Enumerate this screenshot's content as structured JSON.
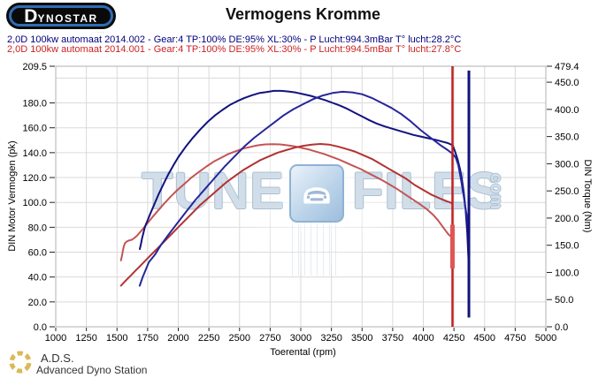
{
  "header": {
    "logo_d": "D",
    "logo_rest": "YNOSTAR",
    "logo_sub": "...",
    "title": "Vermogens Kromme"
  },
  "legend": {
    "run1": {
      "text": "2,0D 100kw automaat 2014.002 - Gear:4 TP:100% DE:95% XL:30%   - P Lucht:994.3mBar T° lucht:28.2°C",
      "color": "#00007d"
    },
    "run2": {
      "text": "2,0D 100kw automaat 2014.001 - Gear:4 TP:100% DE:95% XL:30%   - P Lucht:994.5mBar T° lucht:27.8°C",
      "color": "#cc2222"
    }
  },
  "watermark": {
    "t1": "TUNE",
    "t2": "FILES",
    "t3": "com"
  },
  "footer": {
    "abbr": "A.D.S.",
    "name": "Advanced Dyno Station"
  },
  "chart_data": {
    "type": "line",
    "title": "Vermogens Kromme",
    "grid": true,
    "grid_color": "#dadada",
    "border_color": "#b0b0b0",
    "tick_color": "#222222",
    "x_axis": {
      "label": "Toerental (rpm)",
      "min": 1000,
      "max": 5000,
      "ticks": [
        1000,
        1250,
        1500,
        1750,
        2000,
        2250,
        2500,
        2750,
        3000,
        3250,
        3500,
        3750,
        4000,
        4250,
        4500,
        4750,
        5000
      ],
      "tick_labels": [
        "1000",
        "1250",
        "1500",
        "1750",
        "2000",
        "2250",
        "2500",
        "2750",
        "3000",
        "3250",
        "3500",
        "3750",
        "4000",
        "4250",
        "4500",
        "4750",
        "5000"
      ],
      "grid": [
        1250,
        1500,
        1750,
        2000,
        2250,
        2500,
        2750,
        3000,
        3250,
        3500,
        3750,
        4000,
        4250,
        4500,
        4750
      ]
    },
    "y_left": {
      "label": "DIN Motor Vermogen (pk)",
      "min": 0,
      "max": 209.5,
      "ticks": [
        209.5,
        180,
        160,
        140,
        120,
        100,
        80,
        60,
        40,
        20,
        0
      ],
      "tick_labels": [
        "209.5",
        "180.0",
        "160.0",
        "140.0",
        "120.0",
        "100.0",
        "80.0",
        "60.0",
        "40.0",
        "20.0",
        "0.0"
      ],
      "grid": [
        20,
        40,
        60,
        80,
        100,
        120,
        140,
        160,
        180,
        200
      ]
    },
    "y_right": {
      "label": "DIN Torque (Nm)",
      "min": 0,
      "max": 479.4,
      "ticks": [
        479.4,
        450,
        400,
        350,
        300,
        250,
        200,
        150,
        100,
        50,
        0
      ],
      "tick_labels": [
        "479.4",
        "450.0",
        "400.0",
        "350.0",
        "300.0",
        "250.0",
        "200.0",
        "150.0",
        "100.0",
        "50.0",
        "0.0"
      ]
    },
    "series": [
      {
        "name": "torque-2014-001",
        "axis": "right",
        "color": "#c45454",
        "width": 2,
        "points": [
          [
            1532,
            122
          ],
          [
            1540,
            130
          ],
          [
            1548,
            140
          ],
          [
            1556,
            148
          ],
          [
            1565,
            154
          ],
          [
            1580,
            157
          ],
          [
            1600,
            159
          ],
          [
            1620,
            160
          ],
          [
            1640,
            163
          ],
          [
            1665,
            168
          ],
          [
            1700,
            177
          ],
          [
            1740,
            188
          ],
          [
            1790,
            202
          ],
          [
            1840,
            215
          ],
          [
            1890,
            228
          ],
          [
            1940,
            240
          ],
          [
            1990,
            251
          ],
          [
            2050,
            263
          ],
          [
            2110,
            275
          ],
          [
            2170,
            285
          ],
          [
            2230,
            295
          ],
          [
            2290,
            304
          ],
          [
            2350,
            311
          ],
          [
            2410,
            318
          ],
          [
            2470,
            323
          ],
          [
            2530,
            328
          ],
          [
            2590,
            331
          ],
          [
            2650,
            334
          ],
          [
            2710,
            335.5
          ],
          [
            2770,
            336
          ],
          [
            2830,
            335.5
          ],
          [
            2890,
            334
          ],
          [
            2950,
            332
          ],
          [
            3010,
            329
          ],
          [
            3070,
            326
          ],
          [
            3130,
            322
          ],
          [
            3190,
            318
          ],
          [
            3250,
            313
          ],
          [
            3310,
            308
          ],
          [
            3370,
            302
          ],
          [
            3430,
            296
          ],
          [
            3490,
            290
          ],
          [
            3550,
            283
          ],
          [
            3610,
            276
          ],
          [
            3670,
            269
          ],
          [
            3730,
            261
          ],
          [
            3790,
            253
          ],
          [
            3850,
            244
          ],
          [
            3910,
            235
          ],
          [
            3970,
            226
          ],
          [
            4030,
            216
          ],
          [
            4080,
            206
          ],
          [
            4120,
            196
          ],
          [
            4155,
            185
          ],
          [
            4185,
            176
          ],
          [
            4205,
            170
          ],
          [
            4220,
            167
          ],
          [
            4230,
            169
          ],
          [
            4238,
            168
          ]
        ]
      },
      {
        "name": "vermogen-2014-001",
        "axis": "left",
        "color": "#b23232",
        "width": 2,
        "points": [
          [
            1532,
            33
          ],
          [
            1560,
            36
          ],
          [
            1590,
            39
          ],
          [
            1620,
            42
          ],
          [
            1650,
            45
          ],
          [
            1680,
            48
          ],
          [
            1720,
            52
          ],
          [
            1770,
            57
          ],
          [
            1830,
            63
          ],
          [
            1900,
            70
          ],
          [
            1970,
            77
          ],
          [
            2040,
            84
          ],
          [
            2110,
            91
          ],
          [
            2180,
            98
          ],
          [
            2250,
            104
          ],
          [
            2320,
            110
          ],
          [
            2390,
            116
          ],
          [
            2460,
            121
          ],
          [
            2530,
            126
          ],
          [
            2600,
            130
          ],
          [
            2670,
            134
          ],
          [
            2740,
            137
          ],
          [
            2810,
            140
          ],
          [
            2880,
            142
          ],
          [
            2950,
            144
          ],
          [
            3020,
            145.5
          ],
          [
            3090,
            146.5
          ],
          [
            3160,
            147
          ],
          [
            3230,
            146.5
          ],
          [
            3300,
            145
          ],
          [
            3370,
            143
          ],
          [
            3440,
            141
          ],
          [
            3510,
            138
          ],
          [
            3580,
            135
          ],
          [
            3650,
            131
          ],
          [
            3720,
            127
          ],
          [
            3790,
            123
          ],
          [
            3860,
            119
          ],
          [
            3930,
            114
          ],
          [
            4000,
            110
          ],
          [
            4070,
            106
          ],
          [
            4140,
            103
          ],
          [
            4190,
            101
          ],
          [
            4220,
            100
          ],
          [
            4238,
            99
          ]
        ]
      },
      {
        "name": "torque-2014-002",
        "axis": "right",
        "color": "#12127e",
        "width": 2,
        "points": [
          [
            1686,
            143
          ],
          [
            1695,
            152
          ],
          [
            1705,
            163
          ],
          [
            1715,
            172
          ],
          [
            1725,
            181
          ],
          [
            1735,
            188
          ],
          [
            1750,
            196
          ],
          [
            1770,
            207
          ],
          [
            1800,
            223
          ],
          [
            1840,
            244
          ],
          [
            1880,
            263
          ],
          [
            1920,
            281
          ],
          [
            1960,
            297
          ],
          [
            2000,
            312
          ],
          [
            2060,
            331
          ],
          [
            2120,
            348
          ],
          [
            2180,
            363
          ],
          [
            2240,
            377
          ],
          [
            2300,
            389
          ],
          [
            2360,
            399
          ],
          [
            2420,
            408
          ],
          [
            2480,
            415
          ],
          [
            2540,
            421
          ],
          [
            2600,
            426
          ],
          [
            2660,
            430
          ],
          [
            2720,
            432
          ],
          [
            2780,
            434
          ],
          [
            2840,
            434
          ],
          [
            2900,
            433
          ],
          [
            2960,
            431
          ],
          [
            3020,
            428
          ],
          [
            3080,
            425
          ],
          [
            3140,
            421
          ],
          [
            3200,
            417
          ],
          [
            3260,
            412
          ],
          [
            3320,
            407
          ],
          [
            3380,
            401
          ],
          [
            3440,
            394
          ],
          [
            3500,
            387
          ],
          [
            3560,
            380
          ],
          [
            3620,
            374
          ],
          [
            3680,
            369
          ],
          [
            3740,
            365
          ],
          [
            3800,
            361
          ],
          [
            3860,
            357
          ],
          [
            3920,
            353
          ],
          [
            3980,
            350
          ],
          [
            4040,
            347
          ],
          [
            4100,
            344
          ],
          [
            4150,
            341
          ],
          [
            4200,
            338
          ],
          [
            4240,
            334
          ],
          [
            4260,
            322
          ],
          [
            4280,
            308
          ],
          [
            4300,
            290
          ],
          [
            4315,
            272
          ],
          [
            4330,
            248
          ],
          [
            4345,
            215
          ],
          [
            4358,
            175
          ],
          [
            4368,
            125
          ],
          [
            4372,
            95
          ]
        ]
      },
      {
        "name": "vermogen-2014-002",
        "axis": "left",
        "color": "#26269a",
        "width": 2,
        "points": [
          [
            1685,
            33
          ],
          [
            1710,
            40
          ],
          [
            1735,
            46
          ],
          [
            1760,
            52
          ],
          [
            1785,
            55
          ],
          [
            1810,
            58
          ],
          [
            1860,
            66
          ],
          [
            1920,
            74
          ],
          [
            1990,
            83
          ],
          [
            2060,
            92
          ],
          [
            2140,
            102
          ],
          [
            2220,
            111
          ],
          [
            2300,
            120
          ],
          [
            2380,
            129
          ],
          [
            2460,
            137
          ],
          [
            2540,
            145
          ],
          [
            2620,
            152
          ],
          [
            2700,
            158
          ],
          [
            2780,
            164
          ],
          [
            2860,
            170
          ],
          [
            2940,
            175
          ],
          [
            3020,
            179
          ],
          [
            3100,
            183
          ],
          [
            3180,
            186
          ],
          [
            3260,
            188
          ],
          [
            3340,
            189
          ],
          [
            3420,
            188.5
          ],
          [
            3500,
            187
          ],
          [
            3580,
            184
          ],
          [
            3660,
            180
          ],
          [
            3740,
            176
          ],
          [
            3820,
            171
          ],
          [
            3900,
            165
          ],
          [
            3980,
            158
          ],
          [
            4060,
            152
          ],
          [
            4140,
            146
          ],
          [
            4200,
            142
          ],
          [
            4240,
            139
          ],
          [
            4265,
            136
          ],
          [
            4285,
            130
          ],
          [
            4305,
            120
          ],
          [
            4325,
            108
          ],
          [
            4345,
            95
          ],
          [
            4360,
            86
          ],
          [
            4372,
            80
          ]
        ]
      }
    ],
    "end_spikes": [
      {
        "name": "run-end-spike-2014-001",
        "x": 4238,
        "from": 209.5,
        "to": 0,
        "axis": "left",
        "color": "#c32222",
        "width": 2.5
      },
      {
        "name": "run-end-spike-2014-001-blob",
        "x": 4238,
        "from": 82,
        "to": 47,
        "axis": "left",
        "color": "#e05555",
        "width": 5
      },
      {
        "name": "run-end-spike-2014-002",
        "x": 4372,
        "from": 206,
        "to": 7.5,
        "axis": "left",
        "color": "#12127e",
        "width": 3
      }
    ]
  }
}
